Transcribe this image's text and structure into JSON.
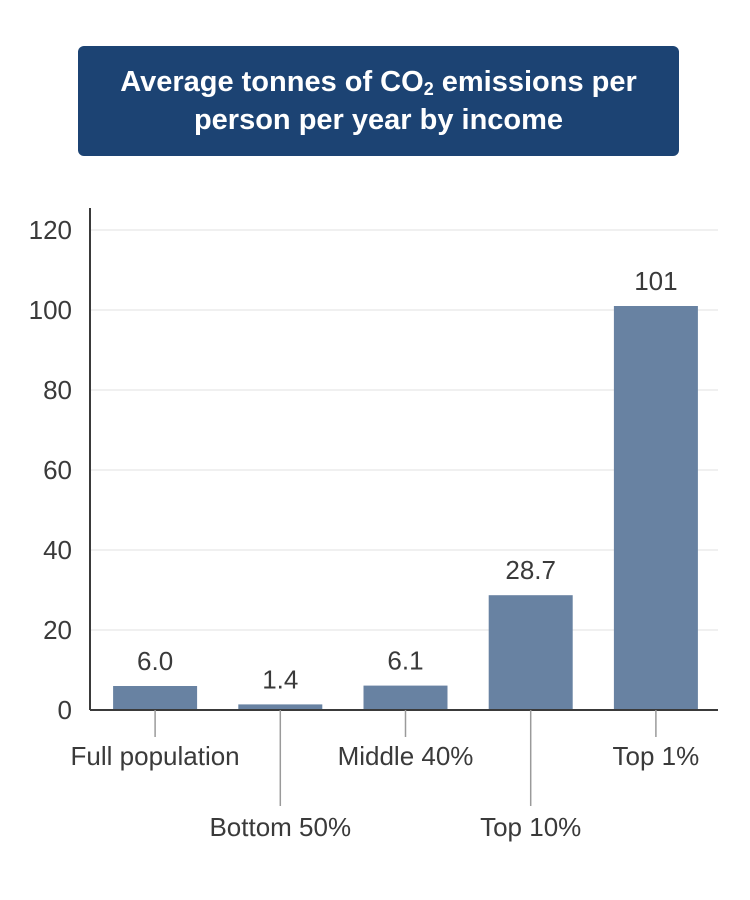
{
  "title": {
    "line1_pre": "Average tonnes of CO",
    "line1_sub": "2",
    "line1_post": " emissions per",
    "line2": "person per year by income"
  },
  "colors": {
    "title_bg": "#1c4373",
    "bar": "#6882a2",
    "grid": "#e2e2e2",
    "axis": "#3a3a3a",
    "text": "#3a3a3a"
  },
  "chart_data": {
    "type": "bar",
    "title": "Average tonnes of CO2 emissions per person per year by income",
    "categories": [
      "Full population",
      "Bottom 50%",
      "Middle 40%",
      "Top 10%",
      "Top 1%"
    ],
    "values": [
      6.0,
      1.4,
      6.1,
      28.7,
      101
    ],
    "data_labels": [
      "6.0",
      "1.4",
      "6.1",
      "28.7",
      "101"
    ],
    "ylim": [
      0,
      120
    ],
    "yticks": [
      0,
      20,
      40,
      60,
      80,
      100,
      120
    ],
    "xlabel": "",
    "ylabel": "",
    "grid": true
  }
}
